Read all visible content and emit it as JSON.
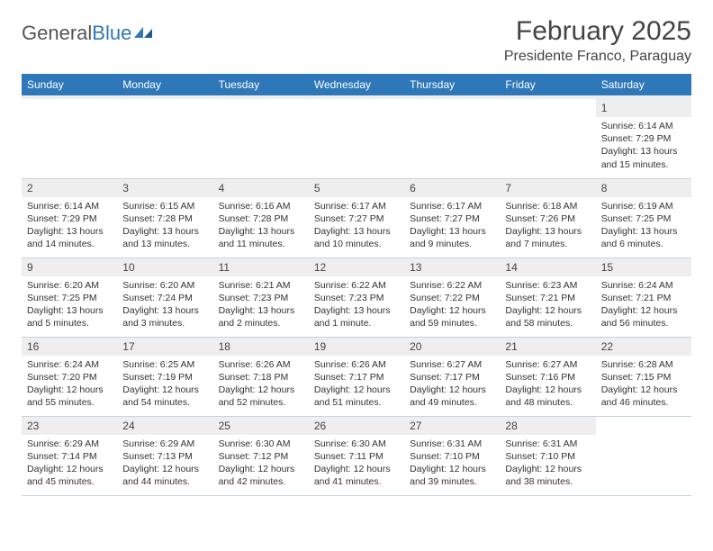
{
  "brand": {
    "part1": "General",
    "part2": "Blue"
  },
  "title": "February 2025",
  "location": "Presidente Franco, Paraguay",
  "colors": {
    "header_bg": "#2e77b8",
    "header_text": "#ffffff",
    "daynum_bg": "#eeeeee",
    "border": "#c5d3e0",
    "text": "#333333"
  },
  "weekdays": [
    "Sunday",
    "Monday",
    "Tuesday",
    "Wednesday",
    "Thursday",
    "Friday",
    "Saturday"
  ],
  "weeks": [
    [
      {
        "empty": true
      },
      {
        "empty": true
      },
      {
        "empty": true
      },
      {
        "empty": true
      },
      {
        "empty": true
      },
      {
        "empty": true
      },
      {
        "num": "1",
        "l1": "Sunrise: 6:14 AM",
        "l2": "Sunset: 7:29 PM",
        "l3": "Daylight: 13 hours",
        "l4": "and 15 minutes."
      }
    ],
    [
      {
        "num": "2",
        "l1": "Sunrise: 6:14 AM",
        "l2": "Sunset: 7:29 PM",
        "l3": "Daylight: 13 hours",
        "l4": "and 14 minutes."
      },
      {
        "num": "3",
        "l1": "Sunrise: 6:15 AM",
        "l2": "Sunset: 7:28 PM",
        "l3": "Daylight: 13 hours",
        "l4": "and 13 minutes."
      },
      {
        "num": "4",
        "l1": "Sunrise: 6:16 AM",
        "l2": "Sunset: 7:28 PM",
        "l3": "Daylight: 13 hours",
        "l4": "and 11 minutes."
      },
      {
        "num": "5",
        "l1": "Sunrise: 6:17 AM",
        "l2": "Sunset: 7:27 PM",
        "l3": "Daylight: 13 hours",
        "l4": "and 10 minutes."
      },
      {
        "num": "6",
        "l1": "Sunrise: 6:17 AM",
        "l2": "Sunset: 7:27 PM",
        "l3": "Daylight: 13 hours",
        "l4": "and 9 minutes."
      },
      {
        "num": "7",
        "l1": "Sunrise: 6:18 AM",
        "l2": "Sunset: 7:26 PM",
        "l3": "Daylight: 13 hours",
        "l4": "and 7 minutes."
      },
      {
        "num": "8",
        "l1": "Sunrise: 6:19 AM",
        "l2": "Sunset: 7:25 PM",
        "l3": "Daylight: 13 hours",
        "l4": "and 6 minutes."
      }
    ],
    [
      {
        "num": "9",
        "l1": "Sunrise: 6:20 AM",
        "l2": "Sunset: 7:25 PM",
        "l3": "Daylight: 13 hours",
        "l4": "and 5 minutes."
      },
      {
        "num": "10",
        "l1": "Sunrise: 6:20 AM",
        "l2": "Sunset: 7:24 PM",
        "l3": "Daylight: 13 hours",
        "l4": "and 3 minutes."
      },
      {
        "num": "11",
        "l1": "Sunrise: 6:21 AM",
        "l2": "Sunset: 7:23 PM",
        "l3": "Daylight: 13 hours",
        "l4": "and 2 minutes."
      },
      {
        "num": "12",
        "l1": "Sunrise: 6:22 AM",
        "l2": "Sunset: 7:23 PM",
        "l3": "Daylight: 13 hours",
        "l4": "and 1 minute."
      },
      {
        "num": "13",
        "l1": "Sunrise: 6:22 AM",
        "l2": "Sunset: 7:22 PM",
        "l3": "Daylight: 12 hours",
        "l4": "and 59 minutes."
      },
      {
        "num": "14",
        "l1": "Sunrise: 6:23 AM",
        "l2": "Sunset: 7:21 PM",
        "l3": "Daylight: 12 hours",
        "l4": "and 58 minutes."
      },
      {
        "num": "15",
        "l1": "Sunrise: 6:24 AM",
        "l2": "Sunset: 7:21 PM",
        "l3": "Daylight: 12 hours",
        "l4": "and 56 minutes."
      }
    ],
    [
      {
        "num": "16",
        "l1": "Sunrise: 6:24 AM",
        "l2": "Sunset: 7:20 PM",
        "l3": "Daylight: 12 hours",
        "l4": "and 55 minutes."
      },
      {
        "num": "17",
        "l1": "Sunrise: 6:25 AM",
        "l2": "Sunset: 7:19 PM",
        "l3": "Daylight: 12 hours",
        "l4": "and 54 minutes."
      },
      {
        "num": "18",
        "l1": "Sunrise: 6:26 AM",
        "l2": "Sunset: 7:18 PM",
        "l3": "Daylight: 12 hours",
        "l4": "and 52 minutes."
      },
      {
        "num": "19",
        "l1": "Sunrise: 6:26 AM",
        "l2": "Sunset: 7:17 PM",
        "l3": "Daylight: 12 hours",
        "l4": "and 51 minutes."
      },
      {
        "num": "20",
        "l1": "Sunrise: 6:27 AM",
        "l2": "Sunset: 7:17 PM",
        "l3": "Daylight: 12 hours",
        "l4": "and 49 minutes."
      },
      {
        "num": "21",
        "l1": "Sunrise: 6:27 AM",
        "l2": "Sunset: 7:16 PM",
        "l3": "Daylight: 12 hours",
        "l4": "and 48 minutes."
      },
      {
        "num": "22",
        "l1": "Sunrise: 6:28 AM",
        "l2": "Sunset: 7:15 PM",
        "l3": "Daylight: 12 hours",
        "l4": "and 46 minutes."
      }
    ],
    [
      {
        "num": "23",
        "l1": "Sunrise: 6:29 AM",
        "l2": "Sunset: 7:14 PM",
        "l3": "Daylight: 12 hours",
        "l4": "and 45 minutes."
      },
      {
        "num": "24",
        "l1": "Sunrise: 6:29 AM",
        "l2": "Sunset: 7:13 PM",
        "l3": "Daylight: 12 hours",
        "l4": "and 44 minutes."
      },
      {
        "num": "25",
        "l1": "Sunrise: 6:30 AM",
        "l2": "Sunset: 7:12 PM",
        "l3": "Daylight: 12 hours",
        "l4": "and 42 minutes."
      },
      {
        "num": "26",
        "l1": "Sunrise: 6:30 AM",
        "l2": "Sunset: 7:11 PM",
        "l3": "Daylight: 12 hours",
        "l4": "and 41 minutes."
      },
      {
        "num": "27",
        "l1": "Sunrise: 6:31 AM",
        "l2": "Sunset: 7:10 PM",
        "l3": "Daylight: 12 hours",
        "l4": "and 39 minutes."
      },
      {
        "num": "28",
        "l1": "Sunrise: 6:31 AM",
        "l2": "Sunset: 7:10 PM",
        "l3": "Daylight: 12 hours",
        "l4": "and 38 minutes."
      },
      {
        "empty": true
      }
    ]
  ]
}
